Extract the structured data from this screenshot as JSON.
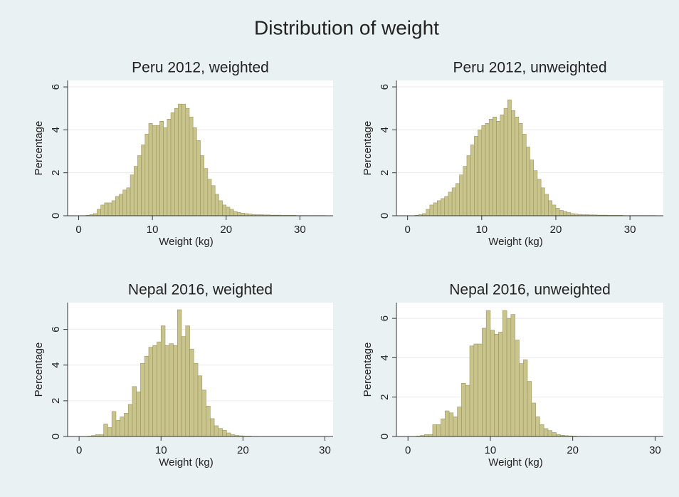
{
  "title": "Distribution of weight",
  "chart_data": [
    {
      "type": "histogram",
      "title": "Peru 2012, weighted",
      "xlabel": "Weight (kg)",
      "ylabel": "Percentage",
      "color": "#c9c48b",
      "bins": [
        1,
        1.5,
        2,
        2.5,
        3,
        3.5,
        4,
        4.5,
        5,
        5.5,
        6,
        6.5,
        7,
        7.5,
        8,
        8.5,
        9,
        9.5,
        10,
        10.5,
        11,
        11.5,
        12,
        12.5,
        13,
        13.5,
        14,
        14.5,
        15,
        15.5,
        16,
        16.5,
        17,
        17.5,
        18,
        18.5,
        19,
        19.5,
        20,
        20.5,
        21,
        21.5,
        22,
        22.5,
        23,
        23.5,
        24,
        24.5,
        25,
        25.5,
        26,
        26.5,
        27,
        27.5,
        28,
        28.5,
        29,
        29.5,
        30,
        30.5,
        31,
        31.5,
        32,
        32.5,
        33,
        33.5
      ],
      "values": [
        0.02,
        0.05,
        0.1,
        0.3,
        0.5,
        0.6,
        0.6,
        0.7,
        0.9,
        1.0,
        1.2,
        1.3,
        1.9,
        2.3,
        2.8,
        3.3,
        3.8,
        4.3,
        4.2,
        4.2,
        4.4,
        4.1,
        4.5,
        4.8,
        5.0,
        5.2,
        5.2,
        5.0,
        4.6,
        4.1,
        3.5,
        2.8,
        2.2,
        1.7,
        1.4,
        1.0,
        0.7,
        0.5,
        0.4,
        0.3,
        0.2,
        0.15,
        0.12,
        0.1,
        0.08,
        0.06,
        0.05,
        0.05,
        0.04,
        0.04,
        0.03,
        0.03,
        0.03,
        0.02,
        0.02,
        0.02,
        0.02,
        0.01,
        0.01,
        0.01,
        0.01,
        0.01,
        0.01,
        0.01,
        0.01
      ],
      "xlim": [
        -1.5,
        34.5
      ],
      "ylim": [
        0,
        6.3
      ],
      "xticks": [
        0,
        10,
        20,
        30
      ],
      "yticks": [
        0,
        2,
        4,
        6
      ],
      "grid": true
    },
    {
      "type": "histogram",
      "title": "Peru 2012, unweighted",
      "xlabel": "Weight (kg)",
      "ylabel": "Percentage",
      "color": "#c9c48b",
      "bins": [
        1,
        1.5,
        2,
        2.5,
        3,
        3.5,
        4,
        4.5,
        5,
        5.5,
        6,
        6.5,
        7,
        7.5,
        8,
        8.5,
        9,
        9.5,
        10,
        10.5,
        11,
        11.5,
        12,
        12.5,
        13,
        13.5,
        14,
        14.5,
        15,
        15.5,
        16,
        16.5,
        17,
        17.5,
        18,
        18.5,
        19,
        19.5,
        20,
        20.5,
        21,
        21.5,
        22,
        22.5,
        23,
        23.5,
        24,
        24.5,
        25,
        25.5,
        26,
        26.5,
        27,
        27.5,
        28,
        28.5,
        29,
        29.5,
        30,
        30.5,
        31,
        31.5,
        32,
        32.5,
        33,
        33.5
      ],
      "values": [
        0.02,
        0.05,
        0.1,
        0.3,
        0.5,
        0.6,
        0.7,
        0.8,
        0.9,
        1.1,
        1.3,
        1.5,
        1.9,
        2.3,
        2.8,
        3.3,
        3.7,
        4.0,
        4.2,
        4.3,
        4.5,
        4.6,
        4.4,
        4.7,
        5.0,
        5.4,
        4.9,
        4.6,
        4.3,
        3.8,
        3.2,
        2.6,
        2.1,
        1.7,
        1.3,
        1.0,
        0.7,
        0.5,
        0.35,
        0.25,
        0.2,
        0.15,
        0.1,
        0.08,
        0.06,
        0.05,
        0.05,
        0.04,
        0.04,
        0.03,
        0.03,
        0.03,
        0.02,
        0.02,
        0.02,
        0.02,
        0.01,
        0.01,
        0.01,
        0.01,
        0.01,
        0.01,
        0.01,
        0.01,
        0.01
      ],
      "xlim": [
        -1.5,
        34.5
      ],
      "ylim": [
        0,
        6.3
      ],
      "xticks": [
        0,
        10,
        20,
        30
      ],
      "yticks": [
        0,
        2,
        4,
        6
      ],
      "grid": true
    },
    {
      "type": "histogram",
      "title": "Nepal 2016, weighted",
      "xlabel": "Weight (kg)",
      "ylabel": "Percentage",
      "color": "#c9c48b",
      "bins": [
        1,
        1.5,
        2,
        2.5,
        3,
        3.5,
        4,
        4.5,
        5,
        5.5,
        6,
        6.5,
        7,
        7.5,
        8,
        8.5,
        9,
        9.5,
        10,
        10.5,
        11,
        11.5,
        12,
        12.5,
        13,
        13.5,
        14,
        14.5,
        15,
        15.5,
        16,
        16.5,
        17,
        17.5,
        18,
        18.5,
        19,
        19.5,
        20,
        20.5,
        21,
        21.5,
        22
      ],
      "values": [
        0.02,
        0.05,
        0.1,
        0.1,
        0.7,
        0.5,
        1.4,
        0.9,
        1.1,
        1.3,
        1.8,
        2.8,
        2.5,
        4.1,
        4.5,
        5.0,
        5.1,
        5.3,
        6.2,
        5.1,
        5.2,
        5.1,
        7.1,
        5.6,
        6.2,
        4.9,
        4.1,
        3.4,
        2.6,
        1.7,
        1.0,
        0.6,
        0.45,
        0.35,
        0.2,
        0.1,
        0.06,
        0.04,
        0.02,
        0.02,
        0.01,
        0.01
      ],
      "xlim": [
        -1.4,
        31
      ],
      "ylim": [
        0,
        7.5
      ],
      "xticks": [
        0,
        10,
        20,
        30
      ],
      "yticks": [
        0,
        2,
        4,
        6
      ],
      "grid": true
    },
    {
      "type": "histogram",
      "title": "Nepal 2016, unweighted",
      "xlabel": "Weight (kg)",
      "ylabel": "Percentage",
      "color": "#c9c48b",
      "bins": [
        1,
        1.5,
        2,
        2.5,
        3,
        3.5,
        4,
        4.5,
        5,
        5.5,
        6,
        6.5,
        7,
        7.5,
        8,
        8.5,
        9,
        9.5,
        10,
        10.5,
        11,
        11.5,
        12,
        12.5,
        13,
        13.5,
        14,
        14.5,
        15,
        15.5,
        16,
        16.5,
        17,
        17.5,
        18,
        18.5,
        19,
        19.5,
        20,
        20.5,
        21,
        21.5,
        22
      ],
      "values": [
        0.02,
        0.05,
        0.1,
        0.1,
        0.6,
        0.6,
        0.9,
        1.3,
        1.2,
        1.0,
        1.5,
        2.7,
        2.6,
        4.6,
        4.7,
        4.7,
        5.5,
        6.4,
        5.4,
        5.2,
        5.3,
        6.4,
        6.0,
        6.2,
        4.9,
        3.7,
        3.9,
        2.8,
        1.7,
        1.0,
        0.6,
        0.4,
        0.3,
        0.2,
        0.1,
        0.06,
        0.04,
        0.03,
        0.02,
        0.01,
        0.01,
        0.01
      ],
      "xlim": [
        -1.4,
        31
      ],
      "ylim": [
        0,
        6.8
      ],
      "xticks": [
        0,
        10,
        20,
        30
      ],
      "yticks": [
        0,
        2,
        4,
        6
      ],
      "grid": true
    }
  ]
}
